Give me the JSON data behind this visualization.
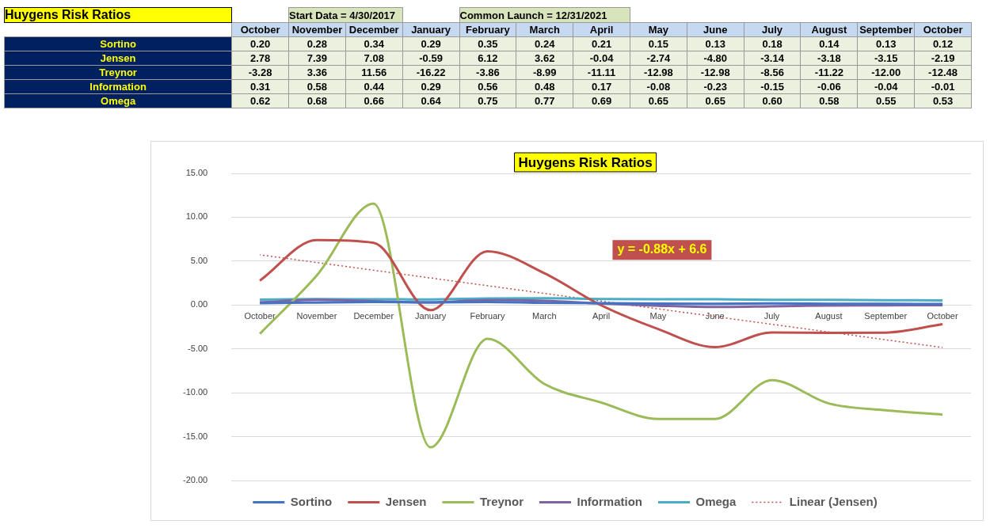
{
  "chart_data": {
    "type": "line",
    "title": "Huygens Risk Ratios",
    "categories": [
      "October",
      "November",
      "December",
      "January",
      "February",
      "March",
      "April",
      "May",
      "June",
      "July",
      "August",
      "September",
      "October"
    ],
    "series": [
      {
        "name": "Sortino",
        "color": "#4472c4",
        "values": [
          0.2,
          0.28,
          0.34,
          0.29,
          0.35,
          0.24,
          0.21,
          0.15,
          0.13,
          0.18,
          0.14,
          0.13,
          0.12
        ],
        "value_labels": [
          "0.20",
          "0.28",
          "0.34",
          "0.29",
          "0.35",
          "0.24",
          "0.21",
          "0.15",
          "0.13",
          "0.18",
          "0.14",
          "0.13",
          "0.12"
        ]
      },
      {
        "name": "Jensen",
        "color": "#c0504d",
        "values": [
          2.78,
          7.39,
          7.08,
          -0.59,
          6.12,
          3.62,
          -0.04,
          -2.74,
          -4.8,
          -3.14,
          -3.18,
          -3.15,
          -2.19
        ],
        "value_labels": [
          "2.78",
          "7.39",
          "7.08",
          "-0.59",
          "6.12",
          "3.62",
          "-0.04",
          "-2.74",
          "-4.80",
          "-3.14",
          "-3.18",
          "-3.15",
          "-2.19"
        ]
      },
      {
        "name": "Treynor",
        "color": "#9bbb59",
        "values": [
          -3.28,
          3.36,
          11.56,
          -16.22,
          -3.86,
          -8.99,
          -11.11,
          -12.98,
          -12.98,
          -8.56,
          -11.22,
          -12.0,
          -12.48
        ],
        "value_labels": [
          "-3.28",
          "3.36",
          "11.56",
          "-16.22",
          "-3.86",
          "-8.99",
          "-11.11",
          "-12.98",
          "-12.98",
          "-8.56",
          "-11.22",
          "-12.00",
          "-12.48"
        ]
      },
      {
        "name": "Information",
        "color": "#8064a2",
        "values": [
          0.31,
          0.58,
          0.44,
          0.29,
          0.56,
          0.48,
          0.17,
          -0.08,
          -0.23,
          -0.15,
          -0.06,
          -0.04,
          -0.01
        ],
        "value_labels": [
          "0.31",
          "0.58",
          "0.44",
          "0.29",
          "0.56",
          "0.48",
          "0.17",
          "-0.08",
          "-0.23",
          "-0.15",
          "-0.06",
          "-0.04",
          "-0.01"
        ]
      },
      {
        "name": "Omega",
        "color": "#4bacc6",
        "values": [
          0.62,
          0.68,
          0.66,
          0.64,
          0.75,
          0.77,
          0.69,
          0.65,
          0.65,
          0.6,
          0.58,
          0.55,
          0.53
        ],
        "value_labels": [
          "0.62",
          "0.68",
          "0.66",
          "0.64",
          "0.75",
          "0.77",
          "0.69",
          "0.65",
          "0.65",
          "0.60",
          "0.58",
          "0.55",
          "0.53"
        ]
      },
      {
        "name": "Linear (Jensen)",
        "type": "line",
        "line_style": "dotted",
        "color": "#c0504d",
        "values": [
          5.72,
          null,
          null,
          null,
          null,
          null,
          null,
          null,
          null,
          null,
          null,
          null,
          -4.84
        ]
      }
    ],
    "ylim": [
      -20,
      15
    ],
    "yticks": [
      {
        "value": -20,
        "label": "-20.00"
      },
      {
        "value": -15,
        "label": "-15.00"
      },
      {
        "value": -10,
        "label": "-10.00"
      },
      {
        "value": -5,
        "label": "-5.00"
      },
      {
        "value": 0,
        "label": "0.00"
      },
      {
        "value": 5,
        "label": "5.00"
      },
      {
        "value": 10,
        "label": "10.00"
      },
      {
        "value": 15,
        "label": "15.00"
      }
    ],
    "grid": "y",
    "legend": "bottom",
    "marker": "none",
    "annotations": [
      "y = -0.88x + 6.6",
      "Start Data = 4/30/2017",
      "Common Launch = 12/31/2021"
    ]
  }
}
